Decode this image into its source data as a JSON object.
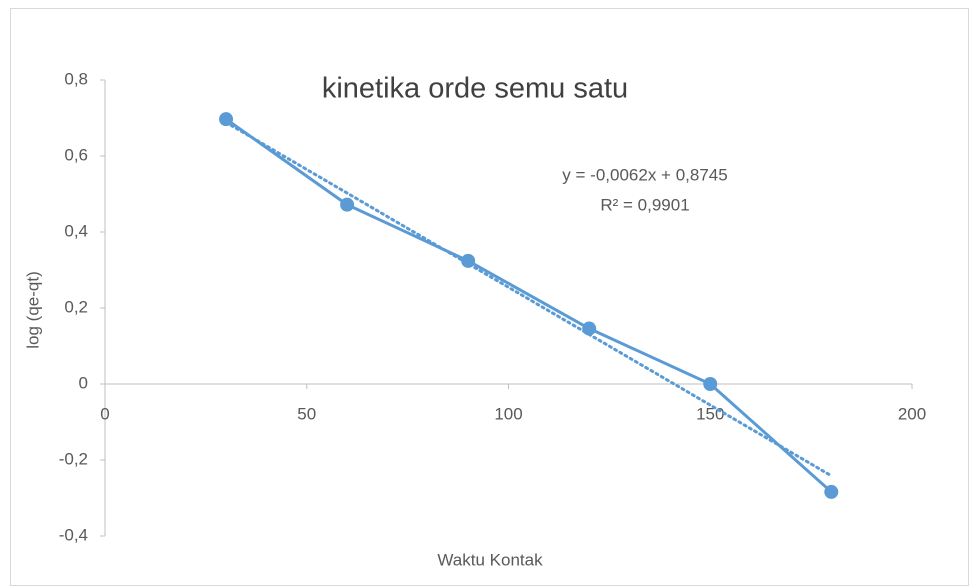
{
  "chart_data": {
    "type": "scatter",
    "title": "kinetika orde semu satu",
    "x_label": "Waktu Kontak",
    "y_label": "log (qe-qt)",
    "series": [
      {
        "name": "log (qe-qt)",
        "color": "#5b9bd5",
        "x": [
          30,
          60,
          90,
          120,
          150,
          180
        ],
        "values": [
          0.697,
          0.472,
          0.324,
          0.146,
          0,
          -0.284
        ]
      }
    ],
    "trendline": {
      "slope": -0.0062,
      "intercept": 0.8745,
      "color": "#5b9bd5",
      "equation": "y = -0,0062x + 0,8745",
      "r2": "R² = 0,9901"
    },
    "xlim": [
      0,
      200
    ],
    "xticks": [
      0,
      50,
      100,
      150,
      200
    ],
    "ylim": [
      -0.4,
      0.8
    ],
    "yticks": [
      {
        "value": -0.4,
        "label": "-0,4"
      },
      {
        "value": -0.2,
        "label": "-0,2"
      },
      0,
      {
        "value": 0.2,
        "label": "0,2"
      },
      {
        "value": 0.4,
        "label": "0,4"
      },
      {
        "value": 0.6,
        "label": "0,6"
      },
      {
        "value": 0.8,
        "label": "0,8"
      }
    ],
    "grid": false
  }
}
